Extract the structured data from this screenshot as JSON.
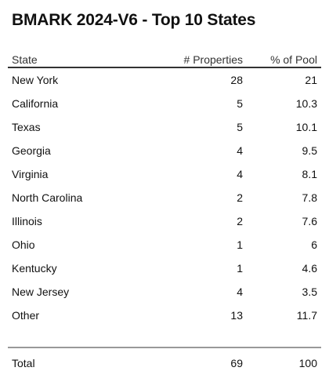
{
  "chart_data": {
    "type": "table",
    "title": "BMARK 2024-V6 - Top 10 States",
    "columns": [
      "State",
      "# Properties",
      "% of Pool"
    ],
    "rows": [
      [
        "New York",
        "28",
        "21"
      ],
      [
        "California",
        "5",
        "10.3"
      ],
      [
        "Texas",
        "5",
        "10.1"
      ],
      [
        "Georgia",
        "4",
        "9.5"
      ],
      [
        "Virginia",
        "4",
        "8.1"
      ],
      [
        "North Carolina",
        "2",
        "7.8"
      ],
      [
        "Illinois",
        "2",
        "7.6"
      ],
      [
        "Ohio",
        "1",
        "6"
      ],
      [
        "Kentucky",
        "1",
        "4.6"
      ],
      [
        "New Jersey",
        "4",
        "3.5"
      ],
      [
        "Other",
        "13",
        "11.7"
      ]
    ],
    "total": [
      "Total",
      "69",
      "100"
    ]
  }
}
